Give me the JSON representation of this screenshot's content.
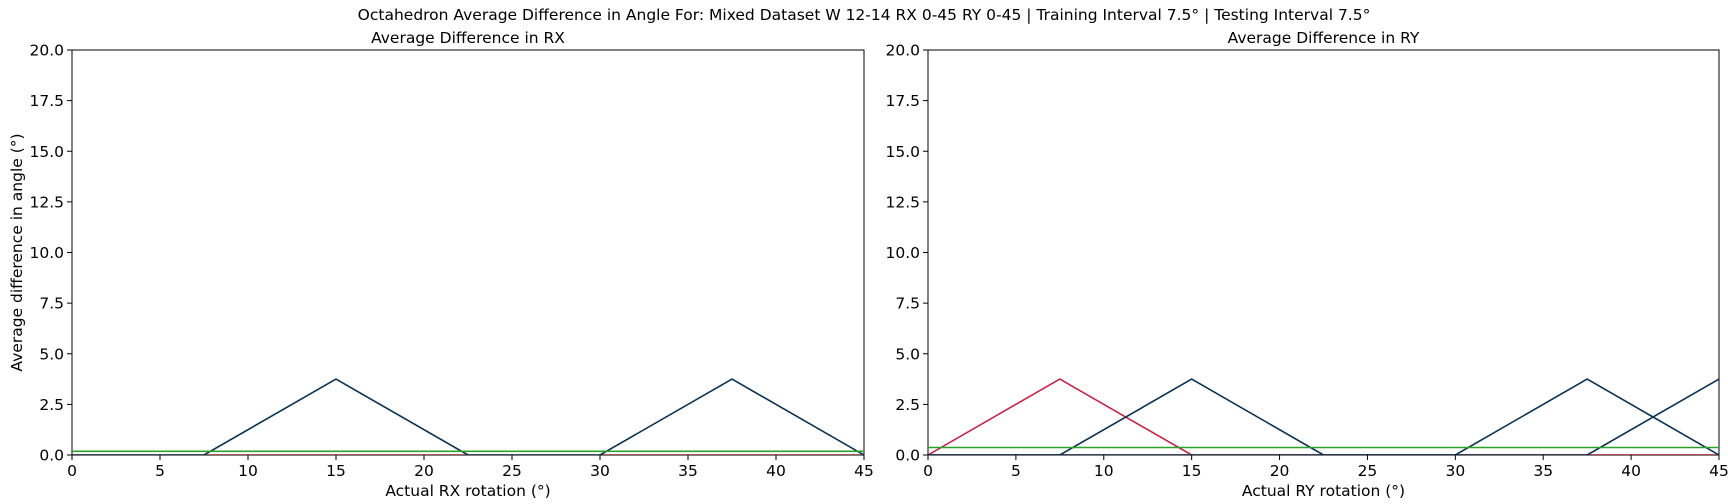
{
  "figure_title": "Octahedron Average Difference in Angle For: Mixed Dataset W 12-14 RX 0-45 RY 0-45 | Training Interval 7.5° | Testing Interval 7.5°",
  "colors": {
    "navy": "#0d3250",
    "green": "#2ca02c",
    "crimson": "#c0294a",
    "darkred": "#8b1a1a"
  },
  "chart_data": [
    {
      "type": "line",
      "title": "Average Difference in RX",
      "xlabel": "Actual RX rotation (°)",
      "ylabel": "Average difference in angle (°)",
      "xlim": [
        0,
        45
      ],
      "ylim": [
        0,
        20
      ],
      "xticks": [
        0,
        5,
        10,
        15,
        20,
        25,
        30,
        35,
        40,
        45
      ],
      "yticks": [
        0.0,
        2.5,
        5.0,
        7.5,
        10.0,
        12.5,
        15.0,
        17.5,
        20.0
      ],
      "xtick_labels": [
        "0",
        "5",
        "10",
        "15",
        "20",
        "25",
        "30",
        "35",
        "40",
        "45"
      ],
      "ytick_labels": [
        "0.0",
        "2.5",
        "5.0",
        "7.5",
        "10.0",
        "12.5",
        "15.0",
        "17.5",
        "20.0"
      ],
      "grid": false,
      "series": [
        {
          "color": "#8b1a1a",
          "points": [
            [
              0,
              0
            ],
            [
              7.5,
              0
            ],
            [
              15,
              0
            ],
            [
              22.5,
              0
            ],
            [
              30,
              0
            ],
            [
              37.5,
              0
            ],
            [
              45,
              0
            ]
          ]
        },
        {
          "color": "#0d3250",
          "points": [
            [
              0,
              0
            ],
            [
              7.5,
              0
            ],
            [
              15,
              3.75
            ],
            [
              22.5,
              0
            ],
            [
              30,
              0
            ],
            [
              37.5,
              3.75
            ],
            [
              45,
              0
            ]
          ]
        },
        {
          "color": "#2ca02c",
          "points": [
            [
              0,
              0.18
            ],
            [
              45,
              0.18
            ]
          ]
        }
      ]
    },
    {
      "type": "line",
      "title": "Average Difference in RY",
      "xlabel": "Actual RY rotation (°)",
      "ylabel": "",
      "xlim": [
        0,
        45
      ],
      "ylim": [
        0,
        20
      ],
      "xticks": [
        0,
        5,
        10,
        15,
        20,
        25,
        30,
        35,
        40,
        45
      ],
      "yticks": [
        0.0,
        2.5,
        5.0,
        7.5,
        10.0,
        12.5,
        15.0,
        17.5,
        20.0
      ],
      "xtick_labels": [
        "0",
        "5",
        "10",
        "15",
        "20",
        "25",
        "30",
        "35",
        "40",
        "45"
      ],
      "ytick_labels": [
        "0.0",
        "2.5",
        "5.0",
        "7.5",
        "10.0",
        "12.5",
        "15.0",
        "17.5",
        "20.0"
      ],
      "grid": false,
      "series": [
        {
          "color": "#8b1a1a",
          "points": [
            [
              0,
              0
            ],
            [
              45,
              0
            ]
          ]
        },
        {
          "color": "#c0294a",
          "points": [
            [
              0,
              0
            ],
            [
              7.5,
              3.75
            ],
            [
              15,
              0
            ],
            [
              22.5,
              0
            ],
            [
              30,
              0
            ],
            [
              37.5,
              0
            ],
            [
              45,
              0
            ]
          ]
        },
        {
          "color": "#0d3250",
          "points": [
            [
              0,
              0
            ],
            [
              7.5,
              0
            ],
            [
              15,
              3.75
            ],
            [
              22.5,
              0
            ],
            [
              30,
              0
            ],
            [
              37.5,
              3.75
            ],
            [
              45,
              0
            ]
          ]
        },
        {
          "color": "#0d3250",
          "points": [
            [
              0,
              0
            ],
            [
              30,
              0
            ],
            [
              37.5,
              0
            ],
            [
              45,
              3.75
            ]
          ]
        },
        {
          "color": "#2ca02c",
          "points": [
            [
              0,
              0.37
            ],
            [
              45,
              0.37
            ]
          ]
        }
      ]
    }
  ]
}
